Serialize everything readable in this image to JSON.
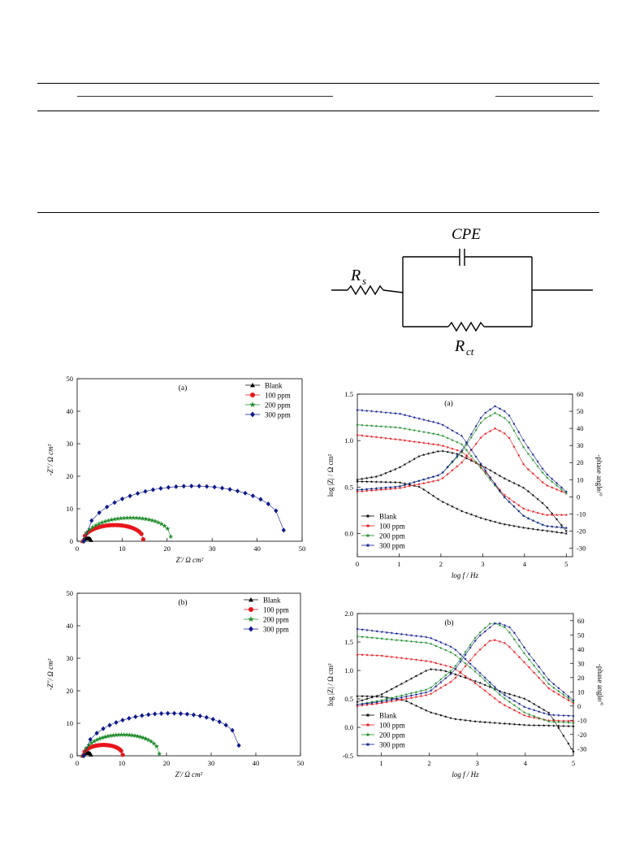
{
  "circuit": {
    "cpe_label": "CPE",
    "rs_main": "R",
    "rs_sub": "s",
    "rct_main": "R",
    "rct_sub": "ct"
  },
  "colors": {
    "Blank": "#000000",
    "100 ppm": "#e8151b",
    "200 ppm": "#1d8c2a",
    "300 ppm": "#0f1a8c"
  },
  "chart_data": [
    {
      "id": "nyq_a",
      "type": "scatter",
      "panel_label": "(a)",
      "xlabel": "Z'/ Ω cm²",
      "ylabel": "-Z''/ Ω cm²",
      "xlim": [
        0,
        50
      ],
      "ylim": [
        0,
        50
      ],
      "xticks": [
        0,
        10,
        20,
        30,
        40,
        50
      ],
      "yticks": [
        0,
        10,
        20,
        30,
        40,
        50
      ],
      "legend_position": "top-right",
      "series": [
        {
          "name": "Blank",
          "color": "#000000",
          "marker": "triangle",
          "rs": 1.2,
          "rct": 1.9,
          "peak": 0.85,
          "tail": 0.3,
          "n": 14
        },
        {
          "name": "100 ppm",
          "color": "#e8151b",
          "marker": "circle",
          "rs": 1.3,
          "rct": 13.4,
          "peak": 4.9,
          "tail": 0.6,
          "n": 32
        },
        {
          "name": "200 ppm",
          "color": "#1d8c2a",
          "marker": "star",
          "rs": 1.4,
          "rct": 19.4,
          "peak": 7.0,
          "tail": 1.4,
          "n": 28
        },
        {
          "name": "300 ppm",
          "color": "#0f1a8c",
          "marker": "diamond",
          "rs": 1.5,
          "rct": 44.4,
          "peak": 16.5,
          "tail": 3.4,
          "n": 26
        }
      ]
    },
    {
      "id": "bode_a",
      "type": "line",
      "panel_label": "(a)",
      "xlabel": "log f / Hz",
      "ylabel": "log |Z| / Ω cm²",
      "y2label": "-phase angle/°",
      "xlim": [
        0,
        5.15
      ],
      "ylim": [
        -0.25,
        1.5
      ],
      "y2lim": [
        -35,
        60
      ],
      "xticks": [
        0,
        1,
        2,
        3,
        4,
        5
      ],
      "yticks": [
        0.0,
        0.5,
        1.0,
        1.5
      ],
      "y2ticks": [
        -30,
        -20,
        -10,
        0,
        10,
        20,
        30,
        40,
        50,
        60
      ],
      "legend_position": "bottom-left",
      "series": [
        {
          "name": "Blank",
          "color": "#000000",
          "logZ": [
            [
              0,
              0.56
            ],
            [
              1,
              0.55
            ],
            [
              1.5,
              0.5
            ],
            [
              2,
              0.35
            ],
            [
              2.5,
              0.24
            ],
            [
              3,
              0.16
            ],
            [
              3.5,
              0.1
            ],
            [
              4,
              0.06
            ],
            [
              4.5,
              0.03
            ],
            [
              5,
              0.0
            ]
          ],
          "phase": [
            [
              0,
              10
            ],
            [
              0.5,
              12
            ],
            [
              1,
              17
            ],
            [
              1.5,
              24
            ],
            [
              2,
              27
            ],
            [
              2.4,
              25
            ],
            [
              3,
              18
            ],
            [
              3.5,
              11
            ],
            [
              4,
              5
            ],
            [
              4.5,
              -5
            ],
            [
              5,
              -20
            ]
          ]
        },
        {
          "name": "100 ppm",
          "color": "#e8151b",
          "logZ": [
            [
              0,
              1.06
            ],
            [
              1,
              1.01
            ],
            [
              2,
              0.95
            ],
            [
              2.5,
              0.88
            ],
            [
              3,
              0.7
            ],
            [
              3.5,
              0.42
            ],
            [
              4,
              0.26
            ],
            [
              4.5,
              0.2
            ],
            [
              5,
              0.2
            ]
          ],
          "phase": [
            [
              0,
              3
            ],
            [
              1,
              5
            ],
            [
              2,
              10
            ],
            [
              2.5,
              20
            ],
            [
              3,
              36
            ],
            [
              3.3,
              40
            ],
            [
              3.6,
              36
            ],
            [
              4,
              18
            ],
            [
              4.5,
              7
            ],
            [
              5,
              2
            ]
          ]
        },
        {
          "name": "200 ppm",
          "color": "#1d8c2a",
          "logZ": [
            [
              0,
              1.17
            ],
            [
              1,
              1.14
            ],
            [
              2,
              1.06
            ],
            [
              2.5,
              0.96
            ],
            [
              3,
              0.68
            ],
            [
              3.5,
              0.4
            ],
            [
              4,
              0.18
            ],
            [
              4.5,
              0.08
            ],
            [
              5,
              0.06
            ]
          ],
          "phase": [
            [
              0,
              4
            ],
            [
              1,
              6
            ],
            [
              2,
              13
            ],
            [
              2.5,
              26
            ],
            [
              3,
              45
            ],
            [
              3.3,
              49
            ],
            [
              3.6,
              45
            ],
            [
              4,
              28
            ],
            [
              4.5,
              12
            ],
            [
              5,
              2
            ]
          ]
        },
        {
          "name": "300 ppm",
          "color": "#0f1a8c",
          "logZ": [
            [
              0,
              1.33
            ],
            [
              1,
              1.29
            ],
            [
              2,
              1.18
            ],
            [
              2.5,
              1.05
            ],
            [
              3,
              0.72
            ],
            [
              3.5,
              0.4
            ],
            [
              4,
              0.18
            ],
            [
              4.5,
              0.08
            ],
            [
              5,
              0.06
            ]
          ],
          "phase": [
            [
              0,
              4
            ],
            [
              1,
              6
            ],
            [
              2,
              13
            ],
            [
              2.5,
              27
            ],
            [
              3,
              48
            ],
            [
              3.3,
              53
            ],
            [
              3.6,
              49
            ],
            [
              4,
              32
            ],
            [
              4.5,
              14
            ],
            [
              5,
              3
            ]
          ]
        }
      ]
    },
    {
      "id": "nyq_b",
      "type": "scatter",
      "panel_label": "(b)",
      "xlabel": "Z'/ Ω cm²",
      "ylabel": "-Z''/ Ω cm²",
      "xlim": [
        0,
        50
      ],
      "ylim": [
        0,
        50
      ],
      "xticks": [
        0,
        10,
        20,
        30,
        40,
        50
      ],
      "yticks": [
        0,
        10,
        20,
        30,
        40,
        50
      ],
      "legend_position": "top-right",
      "series": [
        {
          "name": "Blank",
          "color": "#000000",
          "marker": "triangle",
          "rs": 1.2,
          "rct": 1.9,
          "peak": 0.85,
          "tail": 0.3,
          "n": 14
        },
        {
          "name": "100 ppm",
          "color": "#e8151b",
          "marker": "circle",
          "rs": 1.3,
          "rct": 8.9,
          "peak": 3.3,
          "tail": 0.3,
          "n": 26
        },
        {
          "name": "200 ppm",
          "color": "#1d8c2a",
          "marker": "star",
          "rs": 1.4,
          "rct": 17.0,
          "peak": 6.4,
          "tail": 0.6,
          "n": 28
        },
        {
          "name": "300 ppm",
          "color": "#0f1a8c",
          "marker": "diamond",
          "rs": 1.5,
          "rct": 34.7,
          "peak": 12.6,
          "tail": 3.2,
          "n": 24
        }
      ]
    },
    {
      "id": "bode_b",
      "type": "line",
      "panel_label": "(b)",
      "xlabel": "log f / Hz",
      "ylabel": "log |Z| / Ω cm²",
      "y2label": "-phase angle/°",
      "xlim": [
        0.5,
        5.0
      ],
      "ylim": [
        -0.5,
        2.0
      ],
      "y2lim": [
        -35,
        65
      ],
      "xticks": [
        1,
        2,
        3,
        4,
        5
      ],
      "yticks": [
        -0.5,
        0.0,
        0.5,
        1.0,
        1.5,
        2.0
      ],
      "y2ticks": [
        -30,
        -20,
        -10,
        0,
        10,
        20,
        30,
        40,
        50,
        60
      ],
      "legend_position": "bottom-left",
      "series": [
        {
          "name": "Blank",
          "color": "#000000",
          "logZ": [
            [
              0.5,
              0.55
            ],
            [
              1,
              0.54
            ],
            [
              1.5,
              0.47
            ],
            [
              2,
              0.27
            ],
            [
              2.5,
              0.15
            ],
            [
              3,
              0.1
            ],
            [
              3.5,
              0.07
            ],
            [
              4,
              0.04
            ],
            [
              4.5,
              0.03
            ],
            [
              5,
              0.02
            ]
          ],
          "phase": [
            [
              0.5,
              3
            ],
            [
              1,
              8
            ],
            [
              1.5,
              17
            ],
            [
              2,
              26
            ],
            [
              2.3,
              25
            ],
            [
              3,
              17
            ],
            [
              3.5,
              10
            ],
            [
              4,
              5
            ],
            [
              4.5,
              -5
            ],
            [
              5,
              -32
            ]
          ]
        },
        {
          "name": "100 ppm",
          "color": "#e8151b",
          "logZ": [
            [
              0.5,
              1.28
            ],
            [
              1,
              1.26
            ],
            [
              2,
              1.16
            ],
            [
              2.5,
              1.05
            ],
            [
              3,
              0.75
            ],
            [
              3.5,
              0.42
            ],
            [
              4,
              0.2
            ],
            [
              4.5,
              0.12
            ],
            [
              5,
              0.11
            ]
          ],
          "phase": [
            [
              0.5,
              0
            ],
            [
              1,
              2
            ],
            [
              2,
              8
            ],
            [
              2.5,
              18
            ],
            [
              3,
              38
            ],
            [
              3.3,
              47
            ],
            [
              3.6,
              44
            ],
            [
              4,
              30
            ],
            [
              4.5,
              12
            ],
            [
              5,
              2
            ]
          ]
        },
        {
          "name": "200 ppm",
          "color": "#1d8c2a",
          "logZ": [
            [
              0.5,
              1.6
            ],
            [
              1,
              1.56
            ],
            [
              2,
              1.48
            ],
            [
              2.5,
              1.3
            ],
            [
              3,
              0.95
            ],
            [
              3.5,
              0.55
            ],
            [
              4,
              0.25
            ],
            [
              4.5,
              0.1
            ],
            [
              5,
              0.08
            ]
          ],
          "phase": [
            [
              0.5,
              1
            ],
            [
              1,
              4
            ],
            [
              2,
              12
            ],
            [
              2.5,
              26
            ],
            [
              3,
              50
            ],
            [
              3.3,
              59
            ],
            [
              3.6,
              55
            ],
            [
              4,
              36
            ],
            [
              4.5,
              15
            ],
            [
              5,
              3
            ]
          ]
        },
        {
          "name": "300 ppm",
          "color": "#0f1a8c",
          "logZ": [
            [
              0.5,
              1.73
            ],
            [
              1,
              1.68
            ],
            [
              2,
              1.58
            ],
            [
              2.5,
              1.4
            ],
            [
              3,
              1.0
            ],
            [
              3.5,
              0.6
            ],
            [
              4,
              0.35
            ],
            [
              4.5,
              0.22
            ],
            [
              5,
              0.2
            ]
          ],
          "phase": [
            [
              0.5,
              1
            ],
            [
              1,
              3
            ],
            [
              2,
              10
            ],
            [
              2.5,
              24
            ],
            [
              3,
              48
            ],
            [
              3.4,
              59
            ],
            [
              3.7,
              55
            ],
            [
              4,
              40
            ],
            [
              4.5,
              18
            ],
            [
              5,
              4
            ]
          ]
        }
      ]
    }
  ]
}
